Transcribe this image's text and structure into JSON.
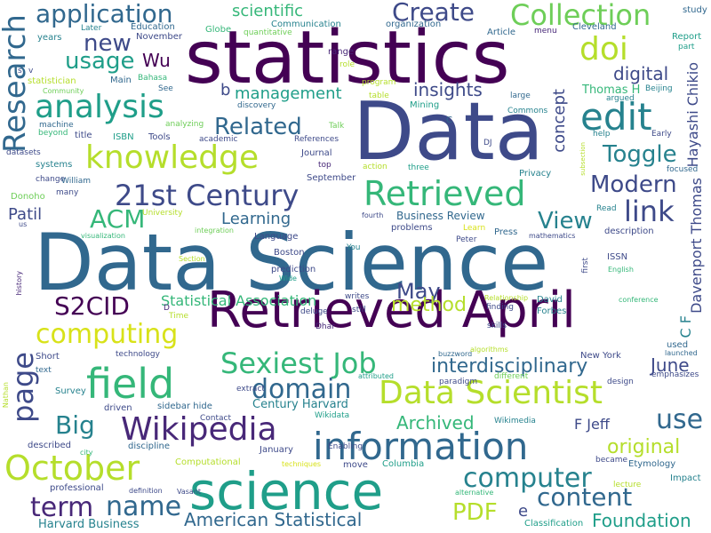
{
  "words": [
    {
      "id": "w0",
      "text": "Data Science",
      "color": "#31688e"
    },
    {
      "id": "w1",
      "text": "Data",
      "color": "#3e4a89"
    },
    {
      "id": "w2",
      "text": "statistics",
      "color": "#440154"
    },
    {
      "id": "w3",
      "text": "Retrieved April",
      "color": "#440154"
    },
    {
      "id": "w4",
      "text": "science",
      "color": "#1f9e89"
    },
    {
      "id": "w5",
      "text": "information",
      "color": "#31688e"
    },
    {
      "id": "w6",
      "text": "Data Scientist",
      "color": "#b5de2b"
    },
    {
      "id": "w7",
      "text": "field",
      "color": "#35b779"
    },
    {
      "id": "w8",
      "text": "Wikipedia",
      "color": "#482878"
    },
    {
      "id": "w9",
      "text": "knowledge",
      "color": "#b5de2b"
    },
    {
      "id": "w10",
      "text": "Retrieved",
      "color": "#35b779"
    },
    {
      "id": "w11",
      "text": "edit",
      "color": "#26828e"
    },
    {
      "id": "w12",
      "text": "October",
      "color": "#b5de2b"
    },
    {
      "id": "w13",
      "text": "analysis",
      "color": "#1f9e89"
    },
    {
      "id": "w14",
      "text": "Sexiest Job",
      "color": "#35b779"
    },
    {
      "id": "w15",
      "text": "Collection",
      "color": "#6ece58"
    },
    {
      "id": "w16",
      "text": "21st Century",
      "color": "#3e4a89"
    },
    {
      "id": "w17",
      "text": "computer",
      "color": "#26828e"
    },
    {
      "id": "w18",
      "text": "computing",
      "color": "#d8e219"
    },
    {
      "id": "w19",
      "text": "application",
      "color": "#31688e"
    },
    {
      "id": "w20",
      "text": "Research",
      "color": "#31688e"
    },
    {
      "id": "w21",
      "text": "page",
      "color": "#3e4a89"
    },
    {
      "id": "w22",
      "text": "doi",
      "color": "#b5de2b"
    },
    {
      "id": "w23",
      "text": "Create",
      "color": "#3e4a89"
    },
    {
      "id": "w24",
      "text": "link",
      "color": "#3e4a89"
    },
    {
      "id": "w25",
      "text": "domain",
      "color": "#31688e"
    },
    {
      "id": "w26",
      "text": "content",
      "color": "#31688e"
    },
    {
      "id": "w27",
      "text": "term",
      "color": "#482878"
    },
    {
      "id": "w28",
      "text": "name",
      "color": "#31688e"
    },
    {
      "id": "w29",
      "text": "use",
      "color": "#31688e"
    },
    {
      "id": "w30",
      "text": "S2CID",
      "color": "#440154"
    },
    {
      "id": "w31",
      "text": "May",
      "color": "#3e4a89"
    },
    {
      "id": "w32",
      "text": "interdisciplinary",
      "color": "#31688e"
    },
    {
      "id": "w33",
      "text": "PDF",
      "color": "#b5de2b"
    },
    {
      "id": "w34",
      "text": "Big",
      "color": "#26828e"
    },
    {
      "id": "w35",
      "text": "ACM",
      "color": "#35b779"
    },
    {
      "id": "w36",
      "text": "View",
      "color": "#26828e"
    },
    {
      "id": "w37",
      "text": "Toggle",
      "color": "#26828e"
    },
    {
      "id": "w38",
      "text": "Modern",
      "color": "#3e4a89"
    },
    {
      "id": "w39",
      "text": "usage",
      "color": "#1f9e89"
    },
    {
      "id": "w40",
      "text": "new",
      "color": "#3e4a89"
    },
    {
      "id": "w41",
      "text": "method",
      "color": "#b5de2b"
    },
    {
      "id": "w42",
      "text": "Related",
      "color": "#31688e"
    },
    {
      "id": "w43",
      "text": "original",
      "color": "#b5de2b"
    },
    {
      "id": "w44",
      "text": "Foundation",
      "color": "#1f9e89"
    },
    {
      "id": "w45",
      "text": "American Statistical",
      "color": "#31688e"
    },
    {
      "id": "w46",
      "text": "Archived",
      "color": "#35b779"
    },
    {
      "id": "w47",
      "text": "June",
      "color": "#3e4a89"
    },
    {
      "id": "w48",
      "text": "digital",
      "color": "#3e4a89"
    },
    {
      "id": "w49",
      "text": "insights",
      "color": "#3e4a89"
    },
    {
      "id": "w50",
      "text": "scientific",
      "color": "#35b779"
    },
    {
      "id": "w51",
      "text": "management",
      "color": "#1f9e89"
    },
    {
      "id": "w52",
      "text": "Learning",
      "color": "#31688e"
    },
    {
      "id": "w53",
      "text": "Statistical Association",
      "color": "#35b779"
    },
    {
      "id": "w54",
      "text": "Wu",
      "color": "#440154"
    },
    {
      "id": "w55",
      "text": "concept",
      "color": "#3e4a89"
    },
    {
      "id": "w56",
      "text": "Hayashi Chikio",
      "color": "#3e4a89"
    },
    {
      "id": "w57",
      "text": "Davenport Thomas",
      "color": "#3e4a89"
    },
    {
      "id": "w58",
      "text": "Patil",
      "color": "#3e4a89"
    },
    {
      "id": "w59",
      "text": "F Jeff",
      "color": "#3e4a89"
    },
    {
      "id": "w60",
      "text": "Business Review",
      "color": "#31688e"
    },
    {
      "id": "w61",
      "text": "Harvard Business",
      "color": "#26828e"
    },
    {
      "id": "w62",
      "text": "Century Harvard",
      "color": "#26828e"
    },
    {
      "id": "w63",
      "text": "C F",
      "color": "#26828e"
    },
    {
      "id": "w64",
      "text": "Thomas H",
      "color": "#35b779"
    },
    {
      "id": "w65",
      "text": "Communication",
      "color": "#26828e"
    },
    {
      "id": "w66",
      "text": "Education",
      "color": "#31688e"
    },
    {
      "id": "w67",
      "text": "organization",
      "color": "#31688e"
    },
    {
      "id": "w68",
      "text": "Globe",
      "color": "#35b779"
    },
    {
      "id": "w69",
      "text": "Cleveland",
      "color": "#31688e"
    },
    {
      "id": "w70",
      "text": "study",
      "color": "#31688e"
    },
    {
      "id": "w71",
      "text": "Article",
      "color": "#31688e"
    },
    {
      "id": "w72",
      "text": "menu",
      "color": "#482878"
    },
    {
      "id": "w73",
      "text": "Report",
      "color": "#1f9e89"
    },
    {
      "id": "w74",
      "text": "part",
      "color": "#1f9e89"
    },
    {
      "id": "w75",
      "text": "November",
      "color": "#3e4a89"
    },
    {
      "id": "w76",
      "text": "Later",
      "color": "#26828e"
    },
    {
      "id": "w77",
      "text": "years",
      "color": "#26828e"
    },
    {
      "id": "w78",
      "text": "quantitative",
      "color": "#6ece58"
    },
    {
      "id": "w79",
      "text": "range",
      "color": "#482878"
    },
    {
      "id": "w80",
      "text": "role",
      "color": "#b5de2b"
    },
    {
      "id": "w81",
      "text": "Main",
      "color": "#31688e"
    },
    {
      "id": "w82",
      "text": "Bahasa",
      "color": "#35b779"
    },
    {
      "id": "w83",
      "text": "statistician",
      "color": "#b5de2b"
    },
    {
      "id": "w84",
      "text": "program",
      "color": "#b5de2b"
    },
    {
      "id": "w85",
      "text": "See",
      "color": "#31688e"
    },
    {
      "id": "w86",
      "text": "Community",
      "color": "#6ece58"
    },
    {
      "id": "w87",
      "text": "discovery",
      "color": "#31688e"
    },
    {
      "id": "w88",
      "text": "table",
      "color": "#b5de2b"
    },
    {
      "id": "w89",
      "text": "large",
      "color": "#31688e"
    },
    {
      "id": "w90",
      "text": "Beijing",
      "color": "#26828e"
    },
    {
      "id": "w91",
      "text": "argued",
      "color": "#26828e"
    },
    {
      "id": "w92",
      "text": "machine",
      "color": "#31688e"
    },
    {
      "id": "w93",
      "text": "analyzing",
      "color": "#6ece58"
    },
    {
      "id": "w94",
      "text": "Mining",
      "color": "#1f9e89"
    },
    {
      "id": "w95",
      "text": "Commons",
      "color": "#26828e"
    },
    {
      "id": "w96",
      "text": "beyond",
      "color": "#35b779"
    },
    {
      "id": "w97",
      "text": "title",
      "color": "#3e4a89"
    },
    {
      "id": "w98",
      "text": "ISBN",
      "color": "#1f9e89"
    },
    {
      "id": "w99",
      "text": "Tools",
      "color": "#3e4a89"
    },
    {
      "id": "w100",
      "text": "academic",
      "color": "#3e4a89"
    },
    {
      "id": "w101",
      "text": "Talk",
      "color": "#6ece58"
    },
    {
      "id": "w102",
      "text": "help",
      "color": "#26828e"
    },
    {
      "id": "w103",
      "text": "Early",
      "color": "#3e4a89"
    },
    {
      "id": "w104",
      "text": "datasets",
      "color": "#3e4a89"
    },
    {
      "id": "w105",
      "text": "References",
      "color": "#3e4a89"
    },
    {
      "id": "w106",
      "text": "Journal",
      "color": "#3e4a89"
    },
    {
      "id": "w107",
      "text": "top",
      "color": "#482878"
    },
    {
      "id": "w108",
      "text": "DJ",
      "color": "#3e4a89"
    },
    {
      "id": "w109",
      "text": "focused",
      "color": "#31688e"
    },
    {
      "id": "w110",
      "text": "systems",
      "color": "#26828e"
    },
    {
      "id": "w111",
      "text": "change",
      "color": "#3e4a89"
    },
    {
      "id": "w112",
      "text": "William",
      "color": "#31688e"
    },
    {
      "id": "w113",
      "text": "action",
      "color": "#b5de2b"
    },
    {
      "id": "w114",
      "text": "three",
      "color": "#1f9e89"
    },
    {
      "id": "w115",
      "text": "Privacy",
      "color": "#26828e"
    },
    {
      "id": "w116",
      "text": "Donoho",
      "color": "#6ece58"
    },
    {
      "id": "w117",
      "text": "many",
      "color": "#3e4a89"
    },
    {
      "id": "w118",
      "text": "September",
      "color": "#3e4a89"
    },
    {
      "id": "w119",
      "text": "University",
      "color": "#b5de2b"
    },
    {
      "id": "w120",
      "text": "fourth",
      "color": "#3e4a89"
    },
    {
      "id": "w121",
      "text": "Read",
      "color": "#26828e"
    },
    {
      "id": "w122",
      "text": "Language",
      "color": "#3e4a89"
    },
    {
      "id": "w123",
      "text": "integration",
      "color": "#6ece58"
    },
    {
      "id": "w124",
      "text": "problems",
      "color": "#3e4a89"
    },
    {
      "id": "w125",
      "text": "Learn",
      "color": "#d8e219"
    },
    {
      "id": "w126",
      "text": "Press",
      "color": "#31688e"
    },
    {
      "id": "w127",
      "text": "mathematics",
      "color": "#3e4a89"
    },
    {
      "id": "w128",
      "text": "Peter",
      "color": "#3e4a89"
    },
    {
      "id": "w129",
      "text": "visualization",
      "color": "#35b779"
    },
    {
      "id": "w130",
      "text": "us",
      "color": "#3e4a89"
    },
    {
      "id": "w131",
      "text": "description",
      "color": "#3e4a89"
    },
    {
      "id": "w132",
      "text": "Boston",
      "color": "#3e4a89"
    },
    {
      "id": "w133",
      "text": "You",
      "color": "#26828e"
    },
    {
      "id": "w134",
      "text": "ISSN",
      "color": "#3e4a89"
    },
    {
      "id": "w135",
      "text": "English",
      "color": "#35b779"
    },
    {
      "id": "w136",
      "text": "Section",
      "color": "#b5de2b"
    },
    {
      "id": "w137",
      "text": "prediction",
      "color": "#3e4a89"
    },
    {
      "id": "w138",
      "text": "Wide",
      "color": "#1f9e89"
    },
    {
      "id": "w139",
      "text": "history",
      "color": "#482878"
    },
    {
      "id": "w140",
      "text": "writes",
      "color": "#3e4a89"
    },
    {
      "id": "w141",
      "text": "D",
      "color": "#482878"
    },
    {
      "id": "w142",
      "text": "Time",
      "color": "#b5de2b"
    },
    {
      "id": "w143",
      "text": "deluge",
      "color": "#3e4a89"
    },
    {
      "id": "w144",
      "text": "still",
      "color": "#3e4a89"
    },
    {
      "id": "w145",
      "text": "Relationship",
      "color": "#b5de2b"
    },
    {
      "id": "w146",
      "text": "finding",
      "color": "#3e4a89"
    },
    {
      "id": "w147",
      "text": "David",
      "color": "#26828e"
    },
    {
      "id": "w148",
      "text": "Forbes",
      "color": "#26828e"
    },
    {
      "id": "w149",
      "text": "conference",
      "color": "#35b779"
    },
    {
      "id": "w150",
      "text": "Dhar",
      "color": "#482878"
    },
    {
      "id": "w151",
      "text": "skills",
      "color": "#3e4a89"
    },
    {
      "id": "w152",
      "text": "used",
      "color": "#31688e"
    },
    {
      "id": "w153",
      "text": "launched",
      "color": "#31688e"
    },
    {
      "id": "w154",
      "text": "technology",
      "color": "#3e4a89"
    },
    {
      "id": "w155",
      "text": "Short",
      "color": "#3e4a89"
    },
    {
      "id": "w156",
      "text": "buzzword",
      "color": "#31688e"
    },
    {
      "id": "w157",
      "text": "algorithms",
      "color": "#b5de2b"
    },
    {
      "id": "w158",
      "text": "New York",
      "color": "#3e4a89"
    },
    {
      "id": "w159",
      "text": "emphasizes",
      "color": "#3e4a89"
    },
    {
      "id": "w160",
      "text": "text",
      "color": "#31688e"
    },
    {
      "id": "w161",
      "text": "attributed",
      "color": "#1f9e89"
    },
    {
      "id": "w162",
      "text": "different",
      "color": "#6ece58"
    },
    {
      "id": "w163",
      "text": "paradigm",
      "color": "#3e4a89"
    },
    {
      "id": "w164",
      "text": "design",
      "color": "#3e4a89"
    },
    {
      "id": "w165",
      "text": "Survey",
      "color": "#26828e"
    },
    {
      "id": "w166",
      "text": "driven",
      "color": "#3e4a89"
    },
    {
      "id": "w167",
      "text": "sidebar hide",
      "color": "#31688e"
    },
    {
      "id": "w168",
      "text": "extract",
      "color": "#3e4a89"
    },
    {
      "id": "w169",
      "text": "Contact",
      "color": "#3e4a89"
    },
    {
      "id": "w170",
      "text": "Wikidata",
      "color": "#1f9e89"
    },
    {
      "id": "w171",
      "text": "Wikimedia",
      "color": "#26828e"
    },
    {
      "id": "w172",
      "text": "Nathan",
      "color": "#b5de2b"
    },
    {
      "id": "w173",
      "text": "described",
      "color": "#3e4a89"
    },
    {
      "id": "w174",
      "text": "city",
      "color": "#35b779"
    },
    {
      "id": "w175",
      "text": "discipline",
      "color": "#31688e"
    },
    {
      "id": "w176",
      "text": "Enabling",
      "color": "#3e4a89"
    },
    {
      "id": "w177",
      "text": "January",
      "color": "#3e4a89"
    },
    {
      "id": "w178",
      "text": "became",
      "color": "#3e4a89"
    },
    {
      "id": "w179",
      "text": "Etymology",
      "color": "#31688e"
    },
    {
      "id": "w180",
      "text": "Computational",
      "color": "#b5de2b"
    },
    {
      "id": "w181",
      "text": "techniques",
      "color": "#d8e219"
    },
    {
      "id": "w182",
      "text": "move",
      "color": "#3e4a89"
    },
    {
      "id": "w183",
      "text": "Columbia",
      "color": "#1f9e89"
    },
    {
      "id": "w184",
      "text": "Impact",
      "color": "#26828e"
    },
    {
      "id": "w185",
      "text": "professional",
      "color": "#3e4a89"
    },
    {
      "id": "w186",
      "text": "definition",
      "color": "#3e4a89"
    },
    {
      "id": "w187",
      "text": "Vasant",
      "color": "#3e4a89"
    },
    {
      "id": "w188",
      "text": "alternative",
      "color": "#35b779"
    },
    {
      "id": "w189",
      "text": "lecture",
      "color": "#b5de2b"
    },
    {
      "id": "w190",
      "text": "Classification",
      "color": "#1f9e89"
    },
    {
      "id": "w191",
      "text": "e",
      "color": "#3e4a89"
    },
    {
      "id": "w192",
      "text": "b",
      "color": "#3e4a89"
    },
    {
      "id": "w193",
      "text": "C",
      "color": "#31688e"
    },
    {
      "id": "w194",
      "text": "subsection",
      "color": "#b5de2b"
    },
    {
      "id": "w195",
      "text": "first",
      "color": "#3e4a89"
    },
    {
      "id": "w196",
      "text": "v",
      "color": "#3e4a89"
    },
    {
      "id": "w197",
      "text": "s",
      "color": "#3e4a89"
    }
  ]
}
